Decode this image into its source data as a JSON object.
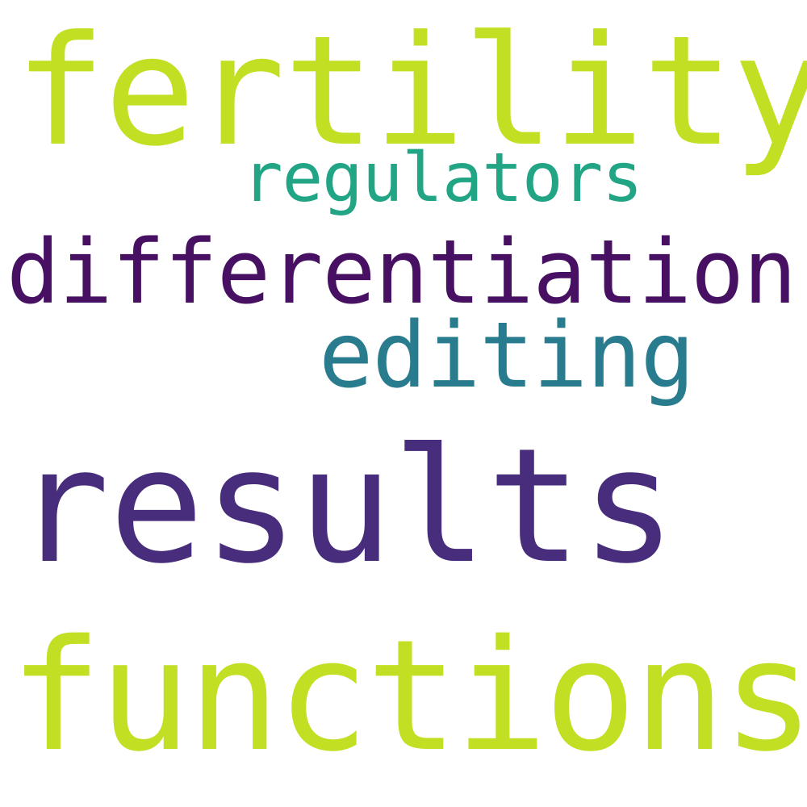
{
  "words": [
    {
      "text": "fertility",
      "color": "#c2df23"
    },
    {
      "text": "regulators",
      "color": "#21a585"
    },
    {
      "text": "differentiation",
      "color": "#471063"
    },
    {
      "text": "editing",
      "color": "#287c8e"
    },
    {
      "text": "results",
      "color": "#472d7b"
    },
    {
      "text": "functions",
      "color": "#c2df23"
    }
  ],
  "background": "#ffffff"
}
